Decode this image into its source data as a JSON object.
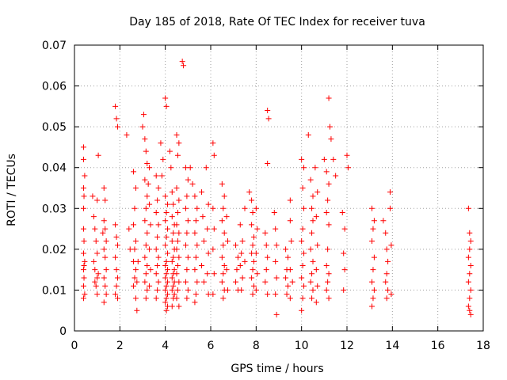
{
  "chart_data": {
    "type": "scatter",
    "title": "Day 185 of 2018, Rate Of TEC Index for receiver tuva",
    "xlabel": "GPS time / hours",
    "ylabel": "ROTI / TECUs",
    "xlim": [
      0,
      18
    ],
    "ylim": [
      0,
      0.07
    ],
    "x_ticks": [
      0,
      2,
      4,
      6,
      8,
      10,
      12,
      14,
      16,
      18
    ],
    "y_ticks": [
      0,
      0.01,
      0.02,
      0.03,
      0.04,
      0.05,
      0.06,
      0.07
    ],
    "x_tick_labels": [
      "0",
      "2",
      "4",
      "6",
      "8",
      "10",
      "12",
      "14",
      "16",
      "18"
    ],
    "y_tick_labels": [
      "0",
      "0.01",
      "0.02",
      "0.03",
      "0.04",
      "0.05",
      "0.06",
      "0.07"
    ],
    "grid": true,
    "marker": "plus",
    "color": "#ff0000",
    "points": [
      [
        0.4,
        0.045
      ],
      [
        0.4,
        0.042
      ],
      [
        0.45,
        0.038
      ],
      [
        0.4,
        0.035
      ],
      [
        0.42,
        0.033
      ],
      [
        0.4,
        0.03
      ],
      [
        0.4,
        0.025
      ],
      [
        0.42,
        0.022
      ],
      [
        0.4,
        0.019
      ],
      [
        0.45,
        0.017
      ],
      [
        0.4,
        0.015
      ],
      [
        0.42,
        0.013
      ],
      [
        0.4,
        0.011
      ],
      [
        0.45,
        0.009
      ],
      [
        0.4,
        0.008
      ],
      [
        0.42,
        0.016
      ],
      [
        0.8,
        0.033
      ],
      [
        0.85,
        0.028
      ],
      [
        0.9,
        0.025
      ],
      [
        0.95,
        0.022
      ],
      [
        1.0,
        0.019
      ],
      [
        0.85,
        0.017
      ],
      [
        0.9,
        0.015
      ],
      [
        1.0,
        0.013
      ],
      [
        0.95,
        0.011
      ],
      [
        1.0,
        0.009
      ],
      [
        1.05,
        0.043
      ],
      [
        1.0,
        0.032
      ],
      [
        1.05,
        0.014
      ],
      [
        0.9,
        0.012
      ],
      [
        1.3,
        0.035
      ],
      [
        1.35,
        0.032
      ],
      [
        1.3,
        0.027
      ],
      [
        1.35,
        0.025
      ],
      [
        1.4,
        0.022
      ],
      [
        1.3,
        0.02
      ],
      [
        1.35,
        0.018
      ],
      [
        1.4,
        0.015
      ],
      [
        1.3,
        0.013
      ],
      [
        1.35,
        0.011
      ],
      [
        1.4,
        0.009
      ],
      [
        1.3,
        0.007
      ],
      [
        1.25,
        0.024
      ],
      [
        1.8,
        0.055
      ],
      [
        1.85,
        0.052
      ],
      [
        1.9,
        0.05
      ],
      [
        1.8,
        0.026
      ],
      [
        1.85,
        0.023
      ],
      [
        1.9,
        0.021
      ],
      [
        1.8,
        0.018
      ],
      [
        1.85,
        0.015
      ],
      [
        1.9,
        0.013
      ],
      [
        1.85,
        0.011
      ],
      [
        1.8,
        0.009
      ],
      [
        1.9,
        0.008
      ],
      [
        2.3,
        0.048
      ],
      [
        2.4,
        0.025
      ],
      [
        2.45,
        0.02
      ],
      [
        2.6,
        0.039
      ],
      [
        2.7,
        0.035
      ],
      [
        2.65,
        0.03
      ],
      [
        2.6,
        0.026
      ],
      [
        2.7,
        0.022
      ],
      [
        2.65,
        0.02
      ],
      [
        2.6,
        0.017
      ],
      [
        2.7,
        0.015
      ],
      [
        2.65,
        0.013
      ],
      [
        2.6,
        0.011
      ],
      [
        2.7,
        0.008
      ],
      [
        2.75,
        0.005
      ],
      [
        2.8,
        0.017
      ],
      [
        2.75,
        0.012
      ],
      [
        3.0,
        0.05
      ],
      [
        3.1,
        0.047
      ],
      [
        3.15,
        0.044
      ],
      [
        3.2,
        0.041
      ],
      [
        3.1,
        0.037
      ],
      [
        3.2,
        0.033
      ],
      [
        3.15,
        0.03
      ],
      [
        3.1,
        0.027
      ],
      [
        3.2,
        0.024
      ],
      [
        3.15,
        0.021
      ],
      [
        3.1,
        0.018
      ],
      [
        3.2,
        0.016
      ],
      [
        3.15,
        0.014
      ],
      [
        3.1,
        0.012
      ],
      [
        3.2,
        0.01
      ],
      [
        3.15,
        0.008
      ],
      [
        3.05,
        0.053
      ],
      [
        3.3,
        0.04
      ],
      [
        3.25,
        0.036
      ],
      [
        3.3,
        0.031
      ],
      [
        3.35,
        0.026
      ],
      [
        3.3,
        0.02
      ],
      [
        3.35,
        0.015
      ],
      [
        3.3,
        0.011
      ],
      [
        3.6,
        0.038
      ],
      [
        3.7,
        0.035
      ],
      [
        3.65,
        0.032
      ],
      [
        3.6,
        0.029
      ],
      [
        3.7,
        0.026
      ],
      [
        3.65,
        0.023
      ],
      [
        3.6,
        0.02
      ],
      [
        3.7,
        0.018
      ],
      [
        3.65,
        0.016
      ],
      [
        3.6,
        0.014
      ],
      [
        3.7,
        0.012
      ],
      [
        3.65,
        0.01
      ],
      [
        3.6,
        0.008
      ],
      [
        3.8,
        0.046
      ],
      [
        3.9,
        0.042
      ],
      [
        3.85,
        0.038
      ],
      [
        4.0,
        0.057
      ],
      [
        4.05,
        0.055
      ],
      [
        4.0,
        0.033
      ],
      [
        4.1,
        0.031
      ],
      [
        4.05,
        0.029
      ],
      [
        4.0,
        0.027
      ],
      [
        4.1,
        0.025
      ],
      [
        4.05,
        0.023
      ],
      [
        4.0,
        0.021
      ],
      [
        4.1,
        0.019
      ],
      [
        4.05,
        0.017
      ],
      [
        4.0,
        0.016
      ],
      [
        4.1,
        0.015
      ],
      [
        4.05,
        0.014
      ],
      [
        4.0,
        0.013
      ],
      [
        4.1,
        0.012
      ],
      [
        4.05,
        0.011
      ],
      [
        4.0,
        0.01
      ],
      [
        4.1,
        0.009
      ],
      [
        4.05,
        0.008
      ],
      [
        4.0,
        0.007
      ],
      [
        4.1,
        0.006
      ],
      [
        4.05,
        0.005
      ],
      [
        4.3,
        0.034
      ],
      [
        4.35,
        0.031
      ],
      [
        4.3,
        0.028
      ],
      [
        4.4,
        0.026
      ],
      [
        4.35,
        0.024
      ],
      [
        4.3,
        0.022
      ],
      [
        4.4,
        0.02
      ],
      [
        4.35,
        0.018
      ],
      [
        4.3,
        0.017
      ],
      [
        4.4,
        0.015
      ],
      [
        4.35,
        0.014
      ],
      [
        4.3,
        0.013
      ],
      [
        4.4,
        0.012
      ],
      [
        4.35,
        0.011
      ],
      [
        4.3,
        0.01
      ],
      [
        4.4,
        0.009
      ],
      [
        4.35,
        0.008
      ],
      [
        4.3,
        0.006
      ],
      [
        4.2,
        0.044
      ],
      [
        4.25,
        0.04
      ],
      [
        4.5,
        0.048
      ],
      [
        4.6,
        0.046
      ],
      [
        4.55,
        0.043
      ],
      [
        4.5,
        0.035
      ],
      [
        4.6,
        0.032
      ],
      [
        4.55,
        0.029
      ],
      [
        4.5,
        0.026
      ],
      [
        4.6,
        0.024
      ],
      [
        4.55,
        0.022
      ],
      [
        4.5,
        0.02
      ],
      [
        4.6,
        0.018
      ],
      [
        4.55,
        0.016
      ],
      [
        4.5,
        0.014
      ],
      [
        4.6,
        0.012
      ],
      [
        4.55,
        0.01
      ],
      [
        4.5,
        0.008
      ],
      [
        4.6,
        0.006
      ],
      [
        4.75,
        0.066
      ],
      [
        4.8,
        0.065
      ],
      [
        4.9,
        0.04
      ],
      [
        5.0,
        0.037
      ],
      [
        4.95,
        0.033
      ],
      [
        4.9,
        0.03
      ],
      [
        5.0,
        0.027
      ],
      [
        4.95,
        0.024
      ],
      [
        4.9,
        0.021
      ],
      [
        5.0,
        0.018
      ],
      [
        4.95,
        0.015
      ],
      [
        4.9,
        0.012
      ],
      [
        5.0,
        0.01
      ],
      [
        4.95,
        0.008
      ],
      [
        5.1,
        0.04
      ],
      [
        5.2,
        0.036
      ],
      [
        5.3,
        0.033
      ],
      [
        5.4,
        0.03
      ],
      [
        5.35,
        0.027
      ],
      [
        5.3,
        0.024
      ],
      [
        5.4,
        0.021
      ],
      [
        5.35,
        0.018
      ],
      [
        5.3,
        0.015
      ],
      [
        5.4,
        0.012
      ],
      [
        5.35,
        0.009
      ],
      [
        5.3,
        0.007
      ],
      [
        5.6,
        0.034
      ],
      [
        5.65,
        0.028
      ],
      [
        5.7,
        0.022
      ],
      [
        5.6,
        0.016
      ],
      [
        5.7,
        0.012
      ],
      [
        5.8,
        0.04
      ],
      [
        5.9,
        0.031
      ],
      [
        5.85,
        0.025
      ],
      [
        5.9,
        0.019
      ],
      [
        5.85,
        0.014
      ],
      [
        5.9,
        0.009
      ],
      [
        6.1,
        0.046
      ],
      [
        6.15,
        0.043
      ],
      [
        6.1,
        0.03
      ],
      [
        6.15,
        0.025
      ],
      [
        6.1,
        0.02
      ],
      [
        6.15,
        0.014
      ],
      [
        6.1,
        0.009
      ],
      [
        6.5,
        0.036
      ],
      [
        6.6,
        0.033
      ],
      [
        6.55,
        0.03
      ],
      [
        6.5,
        0.027
      ],
      [
        6.6,
        0.024
      ],
      [
        6.55,
        0.021
      ],
      [
        6.5,
        0.018
      ],
      [
        6.6,
        0.016
      ],
      [
        6.55,
        0.014
      ],
      [
        6.5,
        0.012
      ],
      [
        6.6,
        0.01
      ],
      [
        6.55,
        0.008
      ],
      [
        6.7,
        0.028
      ],
      [
        6.75,
        0.022
      ],
      [
        6.7,
        0.015
      ],
      [
        6.75,
        0.01
      ],
      [
        7.1,
        0.021
      ],
      [
        7.2,
        0.018
      ],
      [
        7.15,
        0.015
      ],
      [
        7.1,
        0.012
      ],
      [
        7.2,
        0.01
      ],
      [
        7.3,
        0.026
      ],
      [
        7.4,
        0.022
      ],
      [
        7.35,
        0.019
      ],
      [
        7.3,
        0.016
      ],
      [
        7.4,
        0.013
      ],
      [
        7.35,
        0.01
      ],
      [
        7.5,
        0.03
      ],
      [
        7.5,
        0.017
      ],
      [
        7.7,
        0.034
      ],
      [
        7.8,
        0.032
      ],
      [
        7.85,
        0.029
      ],
      [
        7.8,
        0.026
      ],
      [
        7.9,
        0.023
      ],
      [
        7.85,
        0.021
      ],
      [
        7.8,
        0.019
      ],
      [
        7.9,
        0.017
      ],
      [
        7.85,
        0.015
      ],
      [
        7.8,
        0.013
      ],
      [
        7.9,
        0.011
      ],
      [
        7.85,
        0.009
      ],
      [
        8.0,
        0.03
      ],
      [
        8.05,
        0.025
      ],
      [
        8.0,
        0.019
      ],
      [
        8.05,
        0.014
      ],
      [
        8.0,
        0.01
      ],
      [
        8.5,
        0.054
      ],
      [
        8.55,
        0.052
      ],
      [
        8.5,
        0.041
      ],
      [
        8.4,
        0.024
      ],
      [
        8.45,
        0.021
      ],
      [
        8.5,
        0.018
      ],
      [
        8.45,
        0.015
      ],
      [
        8.4,
        0.012
      ],
      [
        8.5,
        0.009
      ],
      [
        8.8,
        0.029
      ],
      [
        8.85,
        0.025
      ],
      [
        8.9,
        0.021
      ],
      [
        8.85,
        0.017
      ],
      [
        8.9,
        0.013
      ],
      [
        8.85,
        0.009
      ],
      [
        8.9,
        0.004
      ],
      [
        9.3,
        0.02
      ],
      [
        9.4,
        0.018
      ],
      [
        9.35,
        0.015
      ],
      [
        9.3,
        0.013
      ],
      [
        9.4,
        0.011
      ],
      [
        9.35,
        0.009
      ],
      [
        9.5,
        0.027
      ],
      [
        9.55,
        0.022
      ],
      [
        9.5,
        0.015
      ],
      [
        9.6,
        0.012
      ],
      [
        9.5,
        0.008
      ],
      [
        9.5,
        0.032
      ],
      [
        10.0,
        0.042
      ],
      [
        10.1,
        0.04
      ],
      [
        10.05,
        0.035
      ],
      [
        10.1,
        0.03
      ],
      [
        10.05,
        0.025
      ],
      [
        10.0,
        0.022
      ],
      [
        10.1,
        0.019
      ],
      [
        10.05,
        0.016
      ],
      [
        10.0,
        0.013
      ],
      [
        10.1,
        0.011
      ],
      [
        10.05,
        0.008
      ],
      [
        10.0,
        0.005
      ],
      [
        10.3,
        0.048
      ],
      [
        10.4,
        0.037
      ],
      [
        10.5,
        0.033
      ],
      [
        10.45,
        0.03
      ],
      [
        10.5,
        0.027
      ],
      [
        10.45,
        0.024
      ],
      [
        10.4,
        0.02
      ],
      [
        10.5,
        0.017
      ],
      [
        10.45,
        0.014
      ],
      [
        10.4,
        0.012
      ],
      [
        10.5,
        0.01
      ],
      [
        10.45,
        0.008
      ],
      [
        10.6,
        0.04
      ],
      [
        10.7,
        0.034
      ],
      [
        10.65,
        0.028
      ],
      [
        10.7,
        0.021
      ],
      [
        10.65,
        0.015
      ],
      [
        10.7,
        0.011
      ],
      [
        10.65,
        0.007
      ],
      [
        11.0,
        0.042
      ],
      [
        11.1,
        0.039
      ],
      [
        11.2,
        0.036
      ],
      [
        11.15,
        0.032
      ],
      [
        11.1,
        0.029
      ],
      [
        11.2,
        0.026
      ],
      [
        11.15,
        0.02
      ],
      [
        11.1,
        0.016
      ],
      [
        11.2,
        0.014
      ],
      [
        11.15,
        0.012
      ],
      [
        11.1,
        0.01
      ],
      [
        11.2,
        0.008
      ],
      [
        11.2,
        0.057
      ],
      [
        11.25,
        0.05
      ],
      [
        11.3,
        0.047
      ],
      [
        11.4,
        0.042
      ],
      [
        11.5,
        0.038
      ],
      [
        11.8,
        0.029
      ],
      [
        11.9,
        0.025
      ],
      [
        11.85,
        0.019
      ],
      [
        11.9,
        0.015
      ],
      [
        11.85,
        0.01
      ],
      [
        12.0,
        0.043
      ],
      [
        12.05,
        0.04
      ],
      [
        13.1,
        0.03
      ],
      [
        13.2,
        0.027
      ],
      [
        13.15,
        0.025
      ],
      [
        13.1,
        0.022
      ],
      [
        13.2,
        0.018
      ],
      [
        13.15,
        0.015
      ],
      [
        13.1,
        0.012
      ],
      [
        13.2,
        0.01
      ],
      [
        13.15,
        0.008
      ],
      [
        13.1,
        0.006
      ],
      [
        13.6,
        0.027
      ],
      [
        13.7,
        0.024
      ],
      [
        13.75,
        0.02
      ],
      [
        13.8,
        0.017
      ],
      [
        13.75,
        0.014
      ],
      [
        13.7,
        0.012
      ],
      [
        13.8,
        0.01
      ],
      [
        13.75,
        0.008
      ],
      [
        13.9,
        0.034
      ],
      [
        13.9,
        0.03
      ],
      [
        13.95,
        0.021
      ],
      [
        13.95,
        0.009
      ],
      [
        17.35,
        0.03
      ],
      [
        17.4,
        0.024
      ],
      [
        17.45,
        0.022
      ],
      [
        17.4,
        0.02
      ],
      [
        17.35,
        0.018
      ],
      [
        17.45,
        0.016
      ],
      [
        17.4,
        0.014
      ],
      [
        17.35,
        0.012
      ],
      [
        17.45,
        0.01
      ],
      [
        17.4,
        0.008
      ],
      [
        17.35,
        0.006
      ],
      [
        17.4,
        0.005
      ],
      [
        17.45,
        0.004
      ]
    ]
  }
}
